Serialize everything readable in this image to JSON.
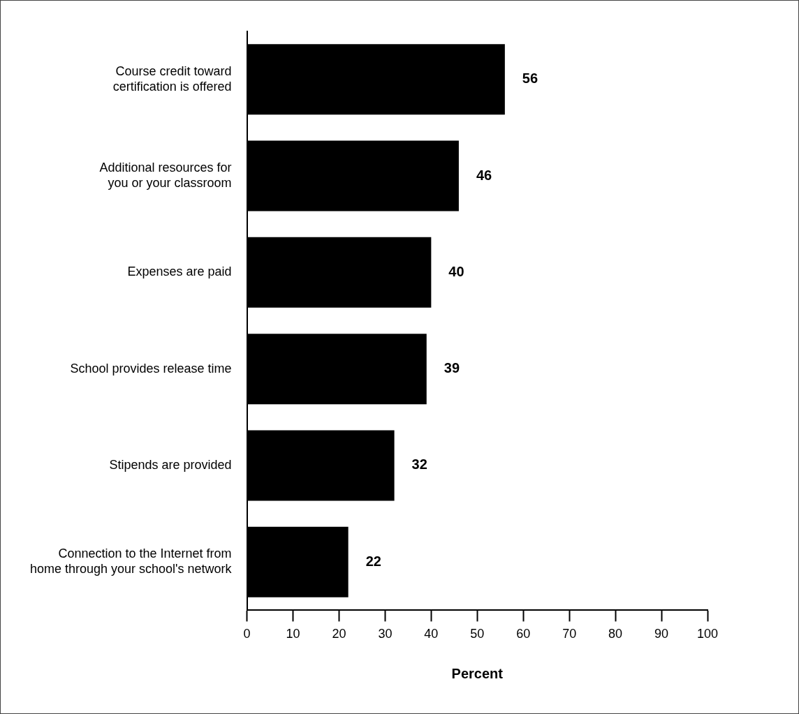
{
  "chart_data": {
    "type": "bar",
    "orientation": "horizontal",
    "xlabel": "Percent",
    "categories": [
      "Course credit toward certification is offered",
      "Additional resources for you or your classroom",
      "Expenses are paid",
      "School provides release time",
      "Stipends are provided",
      "Connection to the Internet from home through your school's network"
    ],
    "values": [
      56,
      46,
      40,
      39,
      32,
      22
    ],
    "color": "#000000",
    "xlim": [
      0,
      100
    ],
    "xticks": [
      0,
      10,
      20,
      30,
      40,
      50,
      60,
      70,
      80,
      90,
      100
    ],
    "grid": false,
    "legend": false,
    "data_labels": true
  }
}
